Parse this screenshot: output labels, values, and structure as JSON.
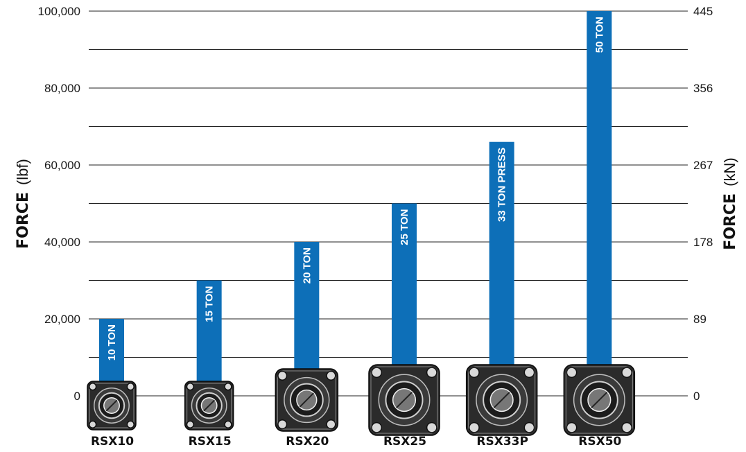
{
  "chart_data": {
    "type": "bar",
    "title": "",
    "categories": [
      "RSX10",
      "RSX15",
      "RSX20",
      "RSX25",
      "RSX33P",
      "RSX50"
    ],
    "values": [
      20000,
      30000,
      40000,
      50000,
      66000,
      100000
    ],
    "bar_labels": [
      "10 TON",
      "15 TON",
      "20 TON",
      "25 TON",
      "33 TON PRESS",
      "50 TON"
    ],
    "ylabel": {
      "strong": "FORCE",
      "unit": "(lbf)"
    },
    "y2label": {
      "strong": "FORCE",
      "unit": "(kN)"
    },
    "ylim": [
      0,
      100000
    ],
    "y_ticks": [
      {
        "value": 0,
        "label": "0"
      },
      {
        "value": 20000,
        "label": "20,000"
      },
      {
        "value": 40000,
        "label": "40,000"
      },
      {
        "value": 60000,
        "label": "60,000"
      },
      {
        "value": 80000,
        "label": "80,000"
      },
      {
        "value": 100000,
        "label": "100,000"
      }
    ],
    "y2_ticks": [
      {
        "value": 0,
        "label": "0"
      },
      {
        "value": 20000,
        "label": "89"
      },
      {
        "value": 40000,
        "label": "178"
      },
      {
        "value": 60000,
        "label": "267"
      },
      {
        "value": 80000,
        "label": "356"
      },
      {
        "value": 100000,
        "label": "445"
      }
    ],
    "grid": true,
    "bar_color": "#0d6fb8"
  }
}
